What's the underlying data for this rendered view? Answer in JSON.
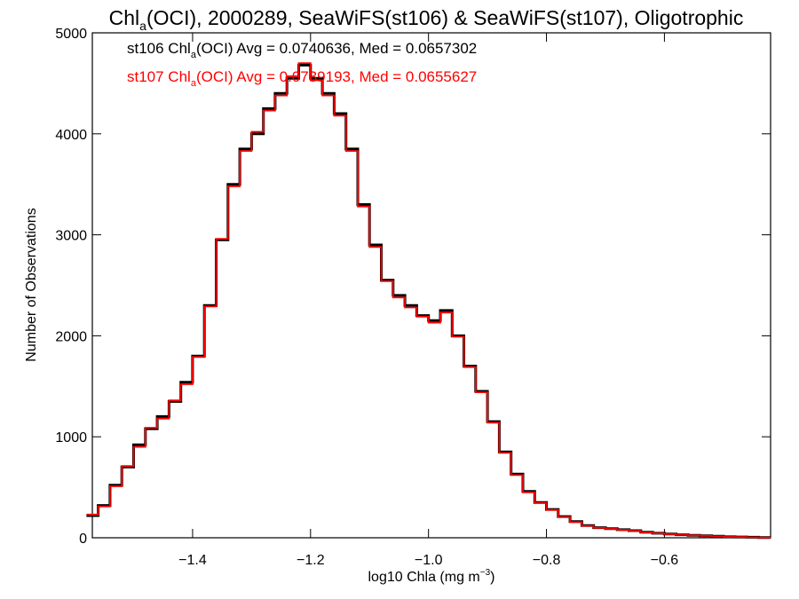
{
  "chart_data": {
    "type": "line",
    "title": {
      "pre": "Chl",
      "sub": "a",
      "post": "(OCI), 2000289, SeaWiFS(st106) & SeaWiFS(st107), Oligotrophic"
    },
    "xlabel": {
      "pre": "log10 Chla (mg m",
      "sup": "−3",
      "post": ")"
    },
    "ylabel": "Number of Observations",
    "xlim": [
      -1.57,
      -0.42
    ],
    "ylim": [
      0,
      5000
    ],
    "x_ticks": [
      {
        "value": -1.4,
        "label": "−1.4"
      },
      {
        "value": -1.2,
        "label": "−1.2"
      },
      {
        "value": -1.0,
        "label": "−1.0"
      },
      {
        "value": -0.8,
        "label": "−0.8"
      },
      {
        "value": -0.6,
        "label": "−0.6"
      }
    ],
    "y_ticks": [
      {
        "value": 0,
        "label": "0"
      },
      {
        "value": 1000,
        "label": "1000"
      },
      {
        "value": 2000,
        "label": "2000"
      },
      {
        "value": 3000,
        "label": "3000"
      },
      {
        "value": 4000,
        "label": "4000"
      },
      {
        "value": 5000,
        "label": "5000"
      }
    ],
    "grid": false,
    "annotations": [
      {
        "pre": "st106 Chl",
        "sub": "a",
        "post": "(OCI) Avg = 0.0740636, Med = 0.0657302",
        "color": "#000000"
      },
      {
        "pre": "st107 Chl",
        "sub": "a",
        "post": "(OCI) Avg = 0.0739193, Med = 0.0655627",
        "color": "#ff0000"
      }
    ],
    "series": [
      {
        "name": "st106",
        "color": "#000000",
        "x": [
          -1.57,
          -1.55,
          -1.53,
          -1.51,
          -1.49,
          -1.47,
          -1.45,
          -1.43,
          -1.41,
          -1.39,
          -1.37,
          -1.35,
          -1.33,
          -1.31,
          -1.29,
          -1.27,
          -1.25,
          -1.23,
          -1.21,
          -1.19,
          -1.17,
          -1.15,
          -1.13,
          -1.11,
          -1.09,
          -1.07,
          -1.05,
          -1.03,
          -1.01,
          -0.99,
          -0.97,
          -0.95,
          -0.93,
          -0.91,
          -0.89,
          -0.87,
          -0.85,
          -0.83,
          -0.81,
          -0.79,
          -0.77,
          -0.75,
          -0.73,
          -0.71,
          -0.69,
          -0.67,
          -0.65,
          -0.63,
          -0.61,
          -0.59,
          -0.57,
          -0.55,
          -0.53,
          -0.51,
          -0.49,
          -0.47,
          -0.45,
          -0.43
        ],
        "y": [
          220,
          320,
          520,
          700,
          920,
          1080,
          1200,
          1350,
          1540,
          1800,
          2300,
          2950,
          3500,
          3850,
          4000,
          4250,
          4400,
          4550,
          4680,
          4550,
          4400,
          4200,
          3850,
          3300,
          2900,
          2550,
          2400,
          2300,
          2200,
          2150,
          2250,
          2000,
          1700,
          1450,
          1150,
          850,
          630,
          460,
          350,
          280,
          210,
          160,
          120,
          100,
          90,
          80,
          70,
          55,
          45,
          38,
          30,
          25,
          20,
          15,
          10,
          8,
          5,
          3
        ]
      },
      {
        "name": "st107",
        "color": "#ff0000",
        "x": [
          -1.57,
          -1.55,
          -1.53,
          -1.51,
          -1.49,
          -1.47,
          -1.45,
          -1.43,
          -1.41,
          -1.39,
          -1.37,
          -1.35,
          -1.33,
          -1.31,
          -1.29,
          -1.27,
          -1.25,
          -1.23,
          -1.21,
          -1.19,
          -1.17,
          -1.15,
          -1.13,
          -1.11,
          -1.09,
          -1.07,
          -1.05,
          -1.03,
          -1.01,
          -0.99,
          -0.97,
          -0.95,
          -0.93,
          -0.91,
          -0.89,
          -0.87,
          -0.85,
          -0.83,
          -0.81,
          -0.79,
          -0.77,
          -0.75,
          -0.73,
          -0.71,
          -0.69,
          -0.67,
          -0.65,
          -0.63,
          -0.61,
          -0.59,
          -0.57,
          -0.55,
          -0.53,
          -0.51,
          -0.49,
          -0.47,
          -0.45,
          -0.43
        ],
        "y": [
          230,
          310,
          510,
          710,
          900,
          1090,
          1180,
          1360,
          1520,
          1790,
          2290,
          2960,
          3480,
          3830,
          4020,
          4230,
          4380,
          4570,
          4700,
          4530,
          4380,
          4180,
          3830,
          3280,
          2880,
          2540,
          2380,
          2280,
          2190,
          2130,
          2230,
          1990,
          1690,
          1440,
          1140,
          840,
          620,
          450,
          345,
          275,
          205,
          155,
          118,
          98,
          88,
          78,
          68,
          54,
          44,
          37,
          29,
          24,
          19,
          14,
          9,
          7,
          4,
          2
        ]
      }
    ]
  }
}
